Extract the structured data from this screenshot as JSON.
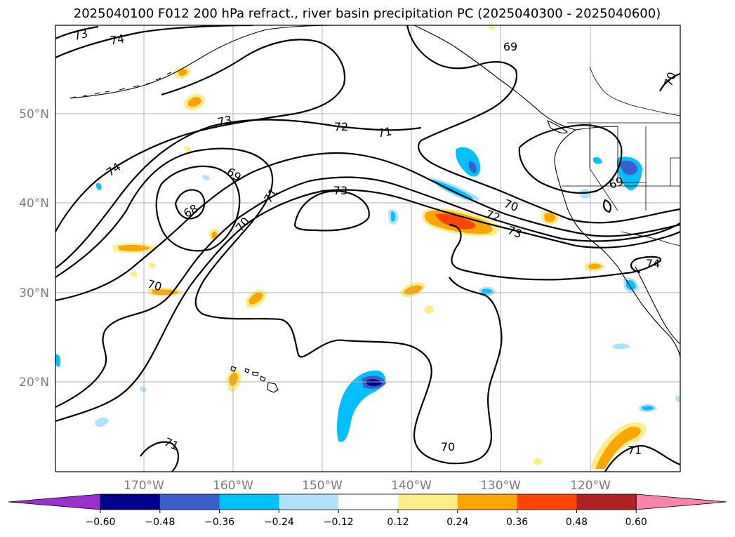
{
  "title": "2025040100 F012 200 hPa refract., river basin precipitation PC (2025040300 - 2025040600)",
  "map": {
    "lat_labels": [
      "50°N",
      "40°N",
      "30°N",
      "20°N"
    ],
    "lon_labels": [
      "170°W",
      "160°W",
      "150°W",
      "140°W",
      "130°W",
      "120°W"
    ],
    "gridlines": true
  },
  "contour_labels": [
    "73",
    "74",
    "69",
    "70",
    "73",
    "72",
    "71",
    "74",
    "69",
    "68",
    "71",
    "70",
    "73",
    "70",
    "72",
    "73",
    "69",
    "70",
    "74",
    "71",
    "70",
    "71"
  ],
  "colorbar": {
    "ticks": [
      "−0.60",
      "−0.48",
      "−0.36",
      "−0.24",
      "−0.12",
      "0.12",
      "0.24",
      "0.36",
      "0.48",
      "0.60"
    ],
    "colors": [
      "#9932cc",
      "#00008b",
      "#3a5fcd",
      "#00bfff",
      "#b0e2ff",
      "#ffffff",
      "#ffec8b",
      "#ffa500",
      "#ff4500",
      "#b22222",
      "#ff82ab"
    ],
    "extend": "both"
  }
}
